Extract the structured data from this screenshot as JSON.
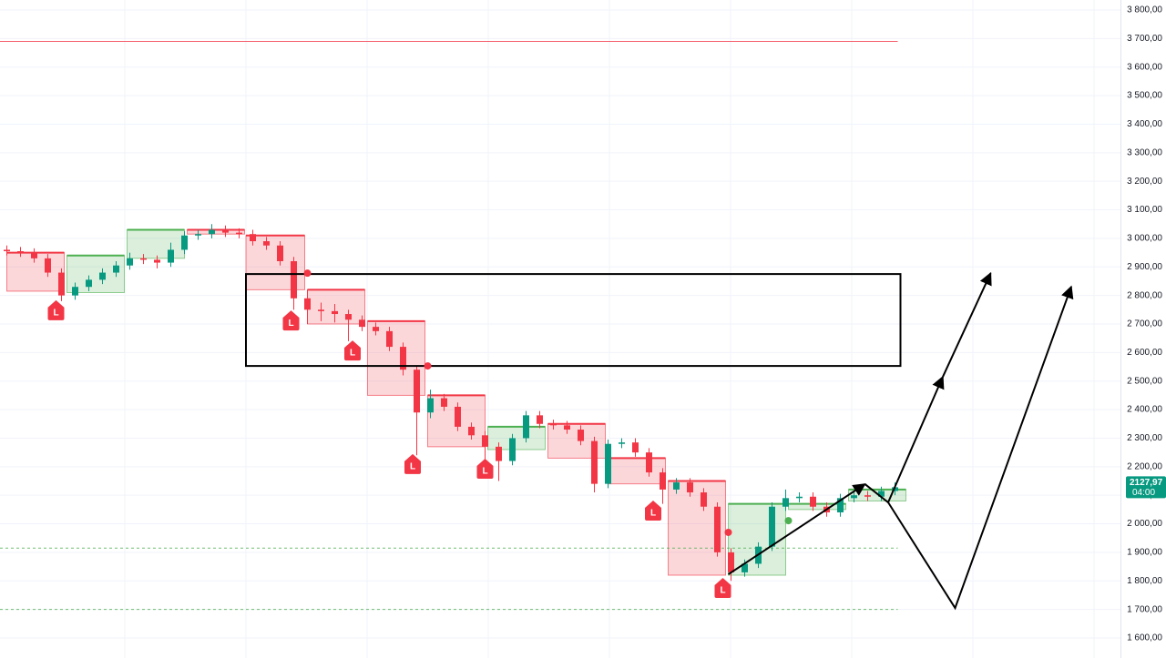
{
  "chart_data": {
    "type": "candlestick",
    "xlim": [
      0,
      82
    ],
    "ylim": [
      1600,
      3800
    ],
    "yticks": [
      {
        "value": 3800,
        "label": "3 800,00"
      },
      {
        "value": 3700,
        "label": "3 700,00"
      },
      {
        "value": 3600,
        "label": "3 600,00"
      },
      {
        "value": 3500,
        "label": "3 500,00"
      },
      {
        "value": 3400,
        "label": "3 400,00"
      },
      {
        "value": 3300,
        "label": "3 300,00"
      },
      {
        "value": 3200,
        "label": "3 200,00"
      },
      {
        "value": 3100,
        "label": "3 100,00"
      },
      {
        "value": 3000,
        "label": "3 000,00"
      },
      {
        "value": 2900,
        "label": "2 900,00"
      },
      {
        "value": 2800,
        "label": "2 800,00"
      },
      {
        "value": 2700,
        "label": "2 700,00"
      },
      {
        "value": 2600,
        "label": "2 600,00"
      },
      {
        "value": 2500,
        "label": "2 500,00"
      },
      {
        "value": 2400,
        "label": "2 400,00"
      },
      {
        "value": 2300,
        "label": "2 300,00"
      },
      {
        "value": 2200,
        "label": "2 200,00"
      },
      {
        "value": 2100,
        "label": "2 100,00"
      },
      {
        "value": 2000,
        "label": "2 000,00"
      },
      {
        "value": 1900,
        "label": "1 900,00"
      },
      {
        "value": 1800,
        "label": "1 800,00"
      },
      {
        "value": 1700,
        "label": "1 700,00"
      },
      {
        "value": 1600,
        "label": "1 600,00"
      }
    ],
    "grid": true,
    "up_color": "#089981",
    "down_color": "#f23645",
    "x": [
      0.5,
      1.5,
      2.5,
      3.5,
      4.5,
      5.5,
      6.5,
      7.5,
      8.5,
      9.5,
      10.5,
      11.5,
      12.5,
      13.5,
      14.5,
      15.5,
      16.5,
      17.5,
      18.5,
      19.5,
      20.5,
      21.5,
      22.5,
      23.5,
      24.5,
      25.5,
      26.5,
      27.5,
      28.5,
      29.5,
      30.5,
      31.5,
      32.5,
      33.5,
      34.5,
      35.5,
      36.5,
      37.5,
      38.5,
      39.5,
      40.5,
      41.5,
      42.5,
      43.5,
      44.5,
      45.5,
      46.5,
      47.5,
      48.5,
      49.5,
      50.5,
      51.5,
      52.5,
      53.5,
      54.5,
      55.5,
      56.5,
      57.5,
      58.5,
      59.5,
      60.5,
      61.5,
      62.5,
      63.5,
      64.5,
      65.5
    ],
    "open": [
      2960,
      2955,
      2950,
      2930,
      2880,
      2800,
      2830,
      2855,
      2880,
      2905,
      2930,
      2925,
      2915,
      2960,
      3010,
      3015,
      3030,
      3020,
      3015,
      2990,
      2975,
      2920,
      2790,
      2750,
      2745,
      2735,
      2715,
      2690,
      2675,
      2620,
      2540,
      2390,
      2440,
      2410,
      2340,
      2310,
      2270,
      2220,
      2300,
      2380,
      2350,
      2345,
      2330,
      2290,
      2140,
      2280,
      2285,
      2250,
      2180,
      2120,
      2145,
      2110,
      2060,
      1900,
      1830,
      1860,
      1920,
      2060,
      2090,
      2095,
      2060,
      2040,
      2090,
      2100,
      2095,
      2115
    ],
    "high": [
      2975,
      2970,
      2965,
      2945,
      2895,
      2845,
      2870,
      2895,
      2920,
      2950,
      2945,
      2940,
      2985,
      3025,
      3030,
      3050,
      3045,
      3035,
      3030,
      3005,
      2990,
      2935,
      2820,
      2775,
      2770,
      2750,
      2730,
      2705,
      2690,
      2635,
      2555,
      2470,
      2455,
      2425,
      2355,
      2325,
      2285,
      2315,
      2395,
      2395,
      2365,
      2360,
      2345,
      2305,
      2295,
      2300,
      2300,
      2265,
      2195,
      2160,
      2160,
      2125,
      2075,
      1915,
      1875,
      1935,
      2075,
      2120,
      2110,
      2110,
      2075,
      2105,
      2115,
      2115,
      2130,
      2145
    ],
    "low": [
      2940,
      2935,
      2915,
      2865,
      2780,
      2785,
      2815,
      2840,
      2865,
      2890,
      2910,
      2895,
      2900,
      2945,
      2995,
      3000,
      3005,
      3000,
      2975,
      2960,
      2905,
      2750,
      2700,
      2710,
      2705,
      2640,
      2675,
      2660,
      2605,
      2520,
      2240,
      2370,
      2395,
      2325,
      2295,
      2200,
      2150,
      2205,
      2285,
      2335,
      2330,
      2315,
      2275,
      2110,
      2125,
      2265,
      2235,
      2165,
      2070,
      2105,
      2095,
      2045,
      1885,
      1800,
      1815,
      1845,
      1905,
      2045,
      2075,
      2045,
      2025,
      2025,
      2075,
      2080,
      2080,
      2100
    ],
    "close": [
      2955,
      2950,
      2930,
      2880,
      2800,
      2830,
      2855,
      2880,
      2905,
      2930,
      2925,
      2915,
      2960,
      3010,
      3015,
      3030,
      3020,
      3015,
      2990,
      2975,
      2920,
      2790,
      2750,
      2745,
      2735,
      2715,
      2690,
      2675,
      2620,
      2540,
      2390,
      2440,
      2410,
      2340,
      2310,
      2270,
      2220,
      2300,
      2380,
      2350,
      2345,
      2330,
      2290,
      2140,
      2280,
      2285,
      2250,
      2180,
      2120,
      2145,
      2110,
      2060,
      1900,
      1830,
      1860,
      1920,
      2060,
      2090,
      2095,
      2060,
      2040,
      2090,
      2100,
      2095,
      2115,
      2127.97
    ],
    "zones": [
      {
        "x": [
          0.5,
          4.7
        ],
        "y": [
          2950,
          2815
        ],
        "color": "#f23645"
      },
      {
        "x": [
          4.9,
          9.1
        ],
        "y": [
          2940,
          2810
        ],
        "color": "#4caf50"
      },
      {
        "x": [
          9.3,
          13.5
        ],
        "y": [
          3030,
          2930
        ],
        "color": "#4caf50"
      },
      {
        "x": [
          13.7,
          17.9
        ],
        "y": [
          3030,
          3015
        ],
        "color": "#f23645"
      },
      {
        "x": [
          18,
          22.3
        ],
        "y": [
          3010,
          2820
        ],
        "color": "#f23645"
      },
      {
        "x": [
          22.5,
          26.7
        ],
        "y": [
          2820,
          2700
        ],
        "color": "#f23645"
      },
      {
        "x": [
          26.9,
          31.1
        ],
        "y": [
          2710,
          2450
        ],
        "color": "#f23645"
      },
      {
        "x": [
          31.3,
          35.5
        ],
        "y": [
          2450,
          2270
        ],
        "color": "#f23645"
      },
      {
        "x": [
          35.7,
          39.9
        ],
        "y": [
          2340,
          2260
        ],
        "color": "#4caf50"
      },
      {
        "x": [
          40.1,
          44.3
        ],
        "y": [
          2350,
          2230
        ],
        "color": "#f23645"
      },
      {
        "x": [
          44.5,
          48.7
        ],
        "y": [
          2230,
          2140
        ],
        "color": "#f23645"
      },
      {
        "x": [
          48.9,
          53.1
        ],
        "y": [
          2150,
          1820
        ],
        "color": "#f23645"
      },
      {
        "x": [
          53.3,
          57.5
        ],
        "y": [
          2070,
          1820
        ],
        "color": "#4caf50"
      },
      {
        "x": [
          57.7,
          61.9
        ],
        "y": [
          2070,
          2050
        ],
        "color": "#4caf50"
      },
      {
        "x": [
          62.1,
          66.3
        ],
        "y": [
          2120,
          2080
        ],
        "color": "#4caf50"
      }
    ],
    "hlines": [
      {
        "y": 3690,
        "x": [
          0,
          65.7
        ],
        "color": "#f23645"
      },
      {
        "y": 1915,
        "x": [
          0,
          65.7
        ],
        "color": "#4caf50"
      },
      {
        "y": 1700,
        "x": [
          0,
          65.7
        ],
        "color": "#4caf50"
      }
    ],
    "box": {
      "x": [
        18,
        65.9
      ],
      "y": [
        2875,
        2553
      ]
    },
    "arrows": [
      {
        "points": [
          [
            53.3,
            1823
          ],
          [
            63.3,
            2139
          ]
        ]
      },
      {
        "points": [
          [
            63.3,
            2139
          ],
          [
            65,
            2075
          ],
          [
            69,
            2515
          ]
        ]
      },
      {
        "points": [
          [
            69,
            2515
          ],
          [
            72.5,
            2878
          ]
        ]
      },
      {
        "points": [
          [
            65,
            2075
          ],
          [
            69.9,
            1705
          ],
          [
            78.4,
            2831
          ]
        ]
      }
    ],
    "markers": {
      "text": "L",
      "color": "#f23645",
      "points": [
        {
          "x": 4.1,
          "y": 2745
        },
        {
          "x": 21.3,
          "y": 2709
        },
        {
          "x": 25.8,
          "y": 2604
        },
        {
          "x": 30.2,
          "y": 2206
        },
        {
          "x": 35.5,
          "y": 2190
        },
        {
          "x": 47.8,
          "y": 2043
        },
        {
          "x": 52.9,
          "y": 1772
        }
      ]
    },
    "dots": [
      {
        "x": 22.5,
        "y": 2878,
        "color": "#f23645"
      },
      {
        "x": 31.3,
        "y": 2553,
        "color": "#f23645"
      },
      {
        "x": 53.3,
        "y": 1970,
        "color": "#f23645"
      },
      {
        "x": 57.7,
        "y": 2011,
        "color": "#4caf50"
      }
    ],
    "last_price": {
      "value": 2127.97,
      "label": "2127,97",
      "time": "04:00",
      "color": "#089981"
    }
  }
}
